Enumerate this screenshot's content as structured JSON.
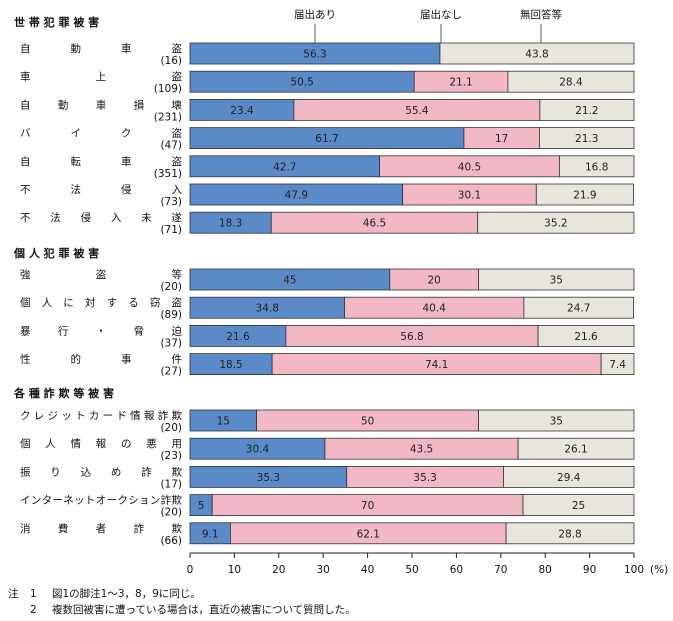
{
  "chart_data": {
    "type": "bar",
    "stacked": true,
    "orientation": "horizontal",
    "series": [
      {
        "name": "届出あり",
        "color": "#5b8ac9"
      },
      {
        "name": "届出なし",
        "color": "#f2b8c6"
      },
      {
        "name": "無回答等",
        "color": "#e8e5dc"
      }
    ],
    "groups": [
      {
        "title": "世 帯 犯 罪 被 害",
        "rows": [
          {
            "label": "自　動　車　盗",
            "n": "(16)",
            "values": [
              56.3,
              null,
              43.8
            ]
          },
          {
            "label": "車　　上　　盗",
            "n": "(109)",
            "values": [
              50.5,
              21.1,
              28.4
            ]
          },
          {
            "label": "自 動 車 損 壊",
            "n": "(231)",
            "values": [
              23.4,
              55.4,
              21.2
            ]
          },
          {
            "label": "バ　イ　ク　盗",
            "n": "(47)",
            "values": [
              61.7,
              17,
              21.3
            ]
          },
          {
            "label": "自　転　車　盗",
            "n": "(351)",
            "values": [
              42.7,
              40.5,
              16.8
            ]
          },
          {
            "label": "不　法　侵　入",
            "n": "(73)",
            "values": [
              47.9,
              30.1,
              21.9
            ]
          },
          {
            "label": "不 法 侵 入 未 遂",
            "n": "(71)",
            "values": [
              18.3,
              46.5,
              35.2
            ]
          }
        ]
      },
      {
        "title": "個 人 犯 罪 被 害",
        "rows": [
          {
            "label": "強　　盗　　等",
            "n": "(20)",
            "values": [
              45,
              20,
              35
            ]
          },
          {
            "label": "個人に対する窃盗",
            "n": "(89)",
            "values": [
              34.8,
              40.4,
              24.7
            ]
          },
          {
            "label": "暴　行　・　脅　迫",
            "n": "(37)",
            "values": [
              21.6,
              56.8,
              21.6
            ]
          },
          {
            "label": "性　的　事　件",
            "n": "(27)",
            "values": [
              18.5,
              74.1,
              7.4
            ]
          }
        ]
      },
      {
        "title": "各 種 詐 欺 等 被 害",
        "rows": [
          {
            "label": "クレジットカード情報詐欺",
            "n": "(20)",
            "values": [
              15,
              50,
              35
            ]
          },
          {
            "label": "個 人 情 報 の 悪 用",
            "n": "(23)",
            "values": [
              30.4,
              43.5,
              26.1
            ]
          },
          {
            "label": "振 り 込 め 詐 欺",
            "n": "(17)",
            "values": [
              35.3,
              35.3,
              29.4
            ]
          },
          {
            "label": "インターネットオークション詐欺",
            "n": "(20)",
            "values": [
              5,
              70,
              25
            ]
          },
          {
            "label": "消　費　者　詐　欺",
            "n": "(66)",
            "values": [
              9.1,
              62.1,
              28.8
            ]
          }
        ]
      }
    ],
    "x_ticks": [
      0,
      10,
      20,
      30,
      40,
      50,
      60,
      70,
      80,
      90,
      100
    ],
    "x_unit": "(%)",
    "xlim": [
      0,
      100
    ]
  },
  "notes": [
    {
      "k1": "注",
      "k2": "1",
      "text": "図1の脚注1～3，8，9に同じ。"
    },
    {
      "k1": "",
      "k2": "2",
      "text": "複数回被害に遭っている場合は，直近の被害について質問した。"
    }
  ]
}
